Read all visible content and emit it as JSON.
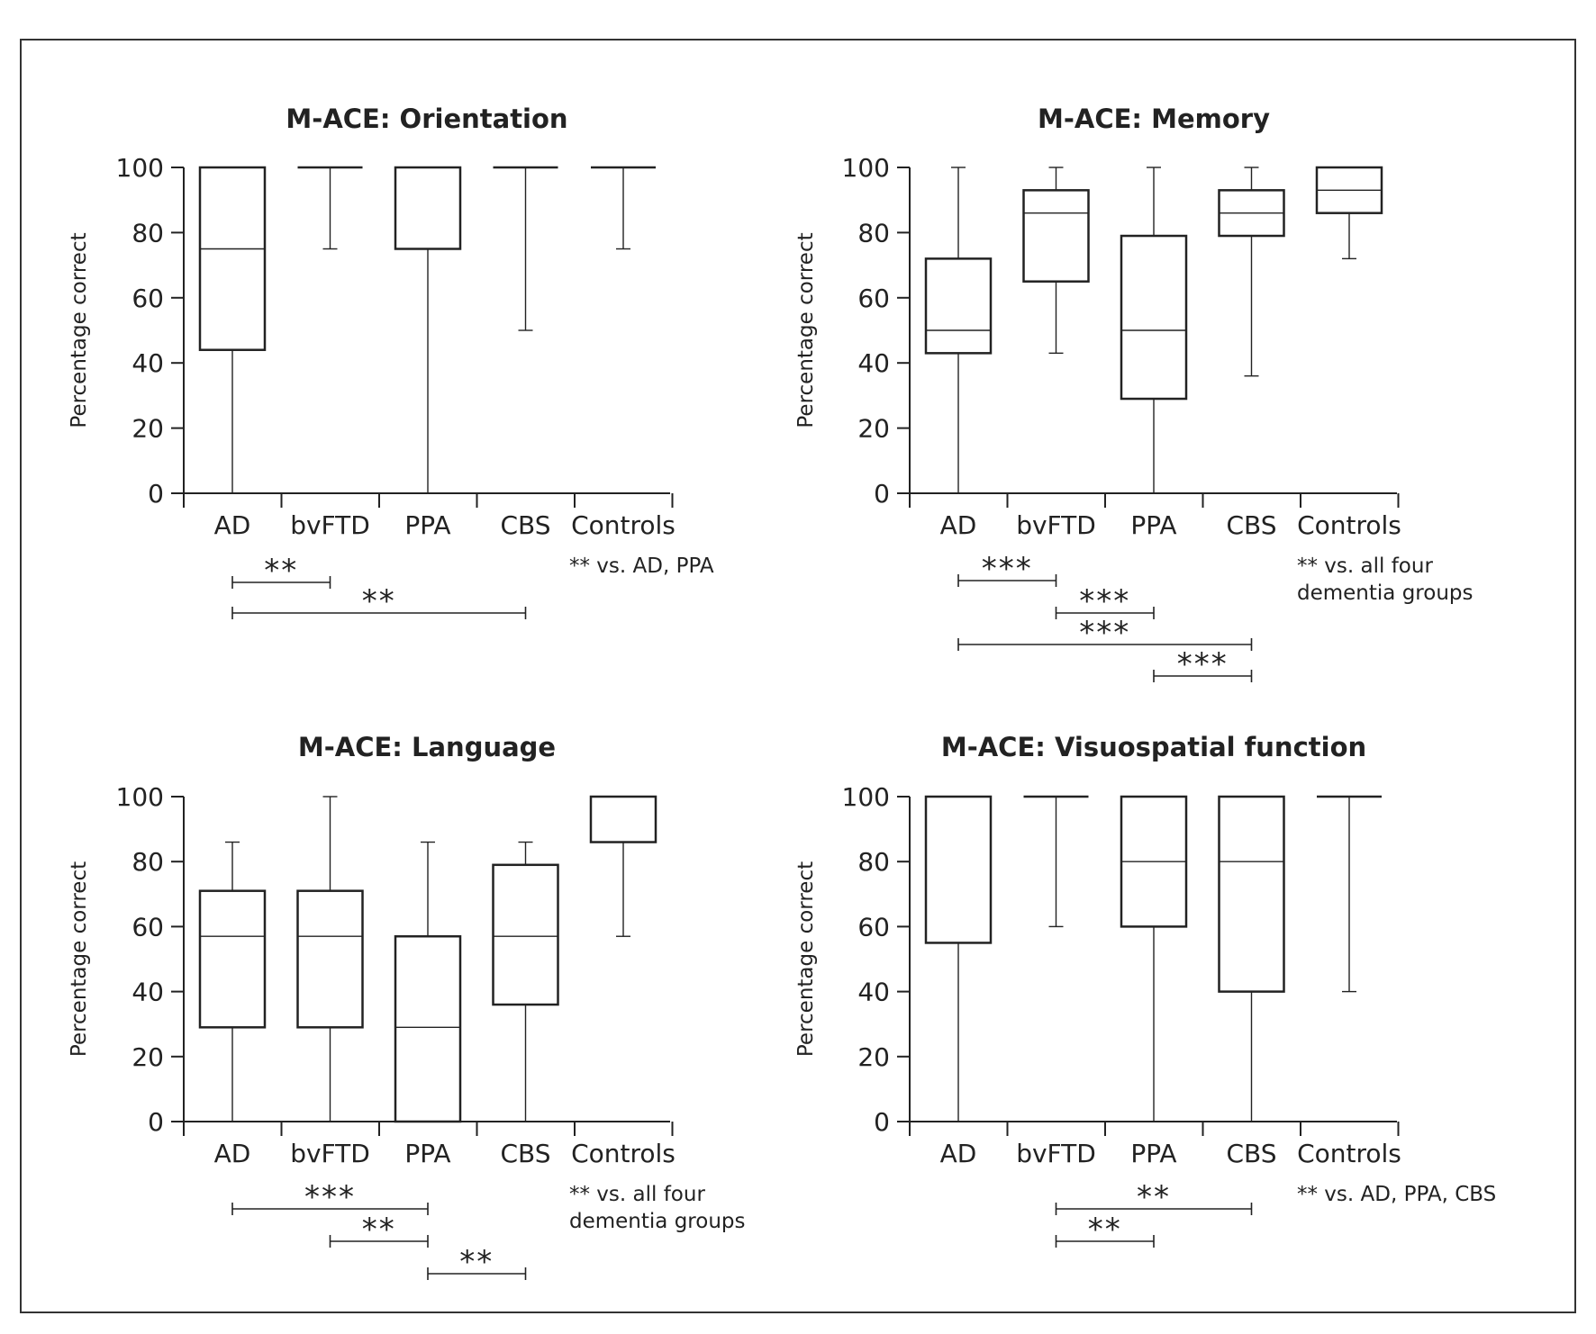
{
  "chart_data": [
    {
      "type": "box",
      "title": "M-ACE: Orientation",
      "ylabel": "Percentage correct",
      "ylim": [
        0,
        100
      ],
      "yticks": [
        "0",
        "20",
        "40",
        "60",
        "80",
        "100"
      ],
      "categories": [
        "AD",
        "bvFTD",
        "PPA",
        "CBS",
        "Controls"
      ],
      "boxes": [
        {
          "min": 0,
          "q1": 44,
          "median": 75,
          "q3": 100,
          "max": 100
        },
        {
          "min": 75,
          "q1": 100,
          "median": 100,
          "q3": 100,
          "max": 100
        },
        {
          "min": 0,
          "q1": 75,
          "median": 75,
          "q3": 100,
          "max": 100
        },
        {
          "min": 50,
          "q1": 100,
          "median": 100,
          "q3": 100,
          "max": 100
        },
        {
          "min": 75,
          "q1": 100,
          "median": 100,
          "q3": 100,
          "max": 100
        }
      ],
      "significance": [
        {
          "from": 0,
          "to": 1,
          "label": "**"
        },
        {
          "from": 0,
          "to": 3,
          "label": "**"
        }
      ],
      "note": [
        "** vs. AD, PPA"
      ]
    },
    {
      "type": "box",
      "title": "M-ACE: Memory",
      "ylabel": "Percentage correct",
      "ylim": [
        0,
        100
      ],
      "yticks": [
        "0",
        "20",
        "40",
        "60",
        "80",
        "100"
      ],
      "categories": [
        "AD",
        "bvFTD",
        "PPA",
        "CBS",
        "Controls"
      ],
      "boxes": [
        {
          "min": 0,
          "q1": 43,
          "median": 50,
          "q3": 72,
          "max": 100
        },
        {
          "min": 43,
          "q1": 65,
          "median": 86,
          "q3": 93,
          "max": 100
        },
        {
          "min": 0,
          "q1": 29,
          "median": 50,
          "q3": 79,
          "max": 100
        },
        {
          "min": 36,
          "q1": 79,
          "median": 86,
          "q3": 93,
          "max": 100
        },
        {
          "min": 72,
          "q1": 86,
          "median": 93,
          "q3": 100,
          "max": 100
        }
      ],
      "significance": [
        {
          "from": 0,
          "to": 1,
          "label": "***"
        },
        {
          "from": 1,
          "to": 2,
          "label": "***"
        },
        {
          "from": 0,
          "to": 3,
          "label": "***"
        },
        {
          "from": 2,
          "to": 3,
          "label": "***"
        }
      ],
      "note": [
        "** vs. all four",
        "dementia groups"
      ]
    },
    {
      "type": "box",
      "title": "M-ACE: Language",
      "ylabel": "Percentage correct",
      "ylim": [
        0,
        100
      ],
      "yticks": [
        "0",
        "20",
        "40",
        "60",
        "80",
        "100"
      ],
      "categories": [
        "AD",
        "bvFTD",
        "PPA",
        "CBS",
        "Controls"
      ],
      "boxes": [
        {
          "min": 0,
          "q1": 29,
          "median": 57,
          "q3": 71,
          "max": 86
        },
        {
          "min": 0,
          "q1": 29,
          "median": 57,
          "q3": 71,
          "max": 100
        },
        {
          "min": 0,
          "q1": 0,
          "median": 29,
          "q3": 57,
          "max": 86
        },
        {
          "min": 0,
          "q1": 36,
          "median": 57,
          "q3": 79,
          "max": 86
        },
        {
          "min": 57,
          "q1": 86,
          "median": 100,
          "q3": 100,
          "max": 100
        }
      ],
      "significance": [
        {
          "from": 0,
          "to": 2,
          "label": "***"
        },
        {
          "from": 1,
          "to": 2,
          "label": "**"
        },
        {
          "from": 2,
          "to": 3,
          "label": "**"
        }
      ],
      "note": [
        "** vs. all four",
        "dementia groups"
      ]
    },
    {
      "type": "box",
      "title": "M-ACE: Visuospatial function",
      "ylabel": "Percentage correct",
      "ylim": [
        0,
        100
      ],
      "yticks": [
        "0",
        "20",
        "40",
        "60",
        "80",
        "100"
      ],
      "categories": [
        "AD",
        "bvFTD",
        "PPA",
        "CBS",
        "Controls"
      ],
      "boxes": [
        {
          "min": 0,
          "q1": 55,
          "median": 100,
          "q3": 100,
          "max": 100
        },
        {
          "min": 60,
          "q1": 100,
          "median": 100,
          "q3": 100,
          "max": 100
        },
        {
          "min": 0,
          "q1": 60,
          "median": 80,
          "q3": 100,
          "max": 100
        },
        {
          "min": 0,
          "q1": 40,
          "median": 80,
          "q3": 100,
          "max": 100
        },
        {
          "min": 40,
          "q1": 100,
          "median": 100,
          "q3": 100,
          "max": 100
        }
      ],
      "significance": [
        {
          "from": 1,
          "to": 3,
          "label": "**"
        },
        {
          "from": 1,
          "to": 2,
          "label": "**"
        }
      ],
      "note": [
        "** vs. AD, PPA, CBS"
      ]
    }
  ]
}
